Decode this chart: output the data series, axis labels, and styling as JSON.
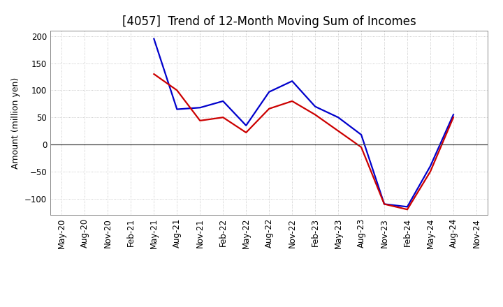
{
  "title": "[4057]  Trend of 12-Month Moving Sum of Incomes",
  "ylabel": "Amount (million yen)",
  "ylim": [
    -130,
    210
  ],
  "yticks": [
    -100,
    -50,
    0,
    50,
    100,
    150,
    200
  ],
  "x_labels": [
    "May-20",
    "Aug-20",
    "Nov-20",
    "Feb-21",
    "May-21",
    "Aug-21",
    "Nov-21",
    "Feb-22",
    "May-22",
    "Aug-22",
    "Nov-22",
    "Feb-23",
    "May-23",
    "Aug-23",
    "Nov-23",
    "Feb-24",
    "May-24",
    "Aug-24",
    "Nov-24"
  ],
  "ordinary_income": [
    null,
    null,
    null,
    null,
    195,
    65,
    68,
    80,
    35,
    97,
    117,
    70,
    50,
    18,
    -110,
    -115,
    -40,
    55,
    null
  ],
  "net_income": [
    null,
    null,
    null,
    null,
    130,
    100,
    44,
    50,
    22,
    66,
    80,
    55,
    25,
    -5,
    -110,
    -120,
    -50,
    50,
    null
  ],
  "ordinary_color": "#0000cc",
  "net_color": "#cc0000",
  "background_color": "#ffffff",
  "grid_color": "#bbbbbb",
  "line_width": 1.6,
  "title_fontsize": 12,
  "label_fontsize": 9,
  "tick_fontsize": 8.5,
  "legend_fontsize": 9.5
}
